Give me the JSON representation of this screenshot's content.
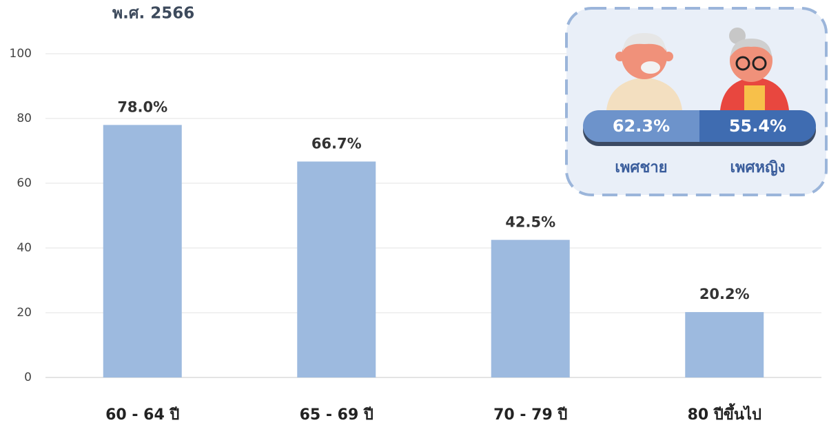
{
  "chart_data": {
    "type": "bar",
    "title": "พ.ศ. 2566",
    "categories": [
      "60 - 64 ปี",
      "65 - 69 ปี",
      "70 - 79 ปี",
      "80 ปีขึ้นไป"
    ],
    "values": [
      78.0,
      66.7,
      42.5,
      20.2
    ],
    "value_labels": [
      "78.0%",
      "66.7%",
      "42.5%",
      "20.2%"
    ],
    "color": "#9dbadf",
    "ylim": [
      0,
      100
    ],
    "yticks": [
      0,
      20,
      40,
      60,
      80,
      100
    ],
    "grid": true,
    "inset": {
      "categories": [
        "เพศชาย",
        "เพศหญิง"
      ],
      "values": [
        62.3,
        55.4
      ],
      "value_labels": [
        "62.3%",
        "55.4%"
      ],
      "colors": [
        "#6d93cb",
        "#3f6cb1"
      ]
    }
  }
}
